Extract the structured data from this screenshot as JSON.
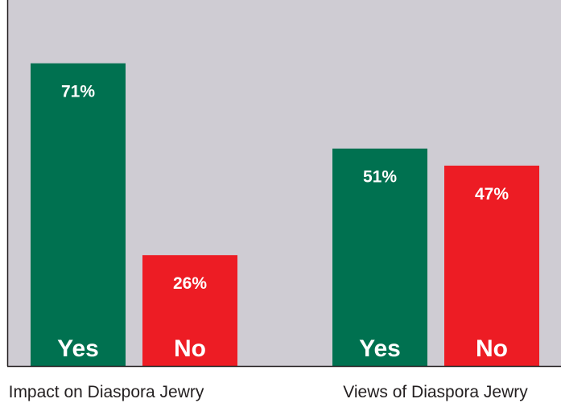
{
  "colors": {
    "plot_background": "#cfccd3",
    "yes": "#007150",
    "no": "#ed1c24",
    "axis": "#231f20",
    "label_text": "#ffffff",
    "group_text": "#231f20"
  },
  "chart_data": {
    "type": "bar",
    "categories": [
      "Impact on Diaspora Jewry",
      "Views of Diaspora Jewry"
    ],
    "series": [
      {
        "name": "Yes",
        "values": [
          71,
          51
        ],
        "labels": [
          "71%",
          "51%"
        ]
      },
      {
        "name": "No",
        "values": [
          26,
          47
        ],
        "labels": [
          "26%",
          "47%"
        ]
      }
    ],
    "ylim": [
      0,
      86
    ],
    "grid": false,
    "title": "",
    "xlabel": "",
    "ylabel": ""
  }
}
